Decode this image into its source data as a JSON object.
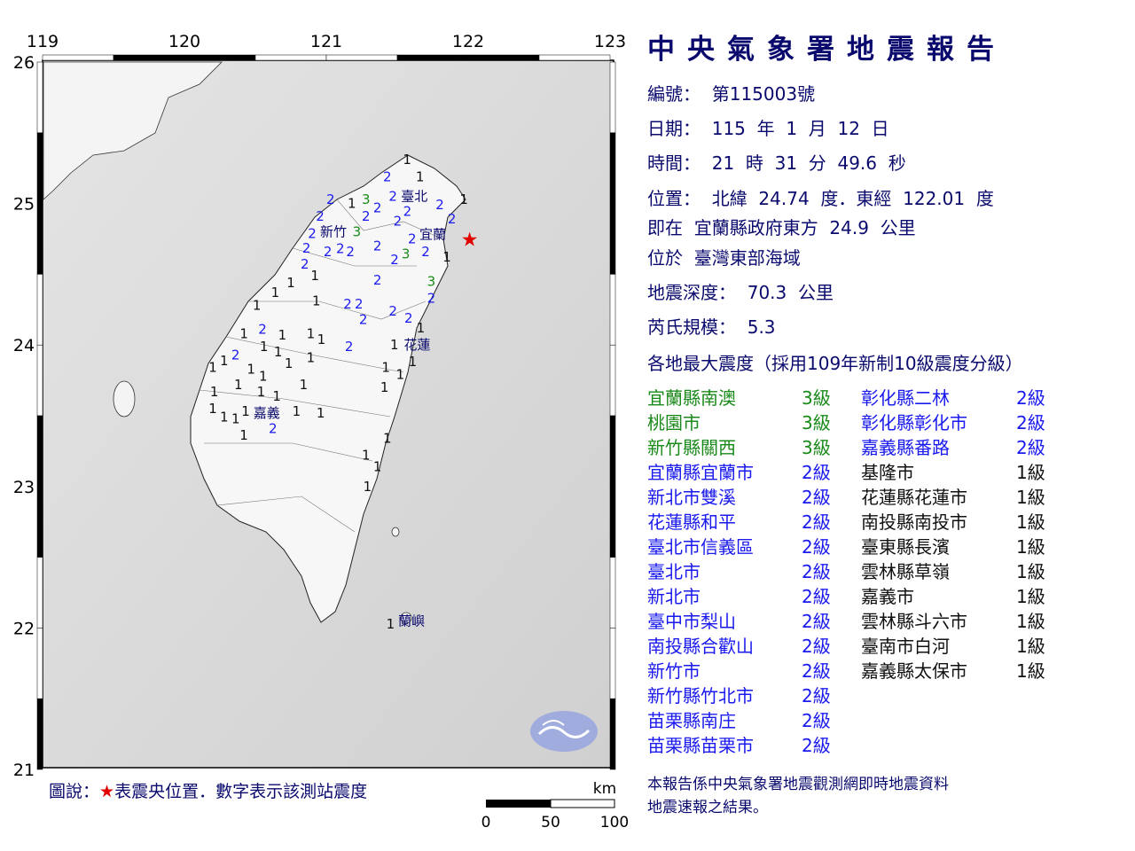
{
  "title": "中央氣象署地震報告",
  "report": {
    "number_label": "編號：",
    "number": "第115003號",
    "date_label": "日期：",
    "date": "115  年  1  月  12  日",
    "time_label": "時間：",
    "time": "21  時  31  分  49.6  秒",
    "location_label": "位置：",
    "location": "北緯  24.74  度．東經  122.01  度",
    "relative_label": "即在",
    "relative": "宜蘭縣政府東方  24.9  公里",
    "region_label": "位於",
    "region": "臺灣東部海域",
    "depth_label": "地震深度：",
    "depth": "70.3  公里",
    "magnitude_label": "芮氏規模：",
    "magnitude": "5.3",
    "intensity_heading": "各地最大震度（採用109年新制10級震度分級）"
  },
  "colors": {
    "level3": "#1a8a1a",
    "level2": "#1a1aee",
    "level1": "#111111",
    "epicenter": "#e00000",
    "text": "#0a0a6e"
  },
  "intensities_left": [
    {
      "place": "宜蘭縣南澳",
      "level": "3級",
      "n": 3
    },
    {
      "place": "桃園市",
      "level": "3級",
      "n": 3
    },
    {
      "place": "新竹縣關西",
      "level": "3級",
      "n": 3
    },
    {
      "place": "宜蘭縣宜蘭市",
      "level": "2級",
      "n": 2
    },
    {
      "place": "新北市雙溪",
      "level": "2級",
      "n": 2
    },
    {
      "place": "花蓮縣和平",
      "level": "2級",
      "n": 2
    },
    {
      "place": "臺北市信義區",
      "level": "2級",
      "n": 2
    },
    {
      "place": "臺北市",
      "level": "2級",
      "n": 2
    },
    {
      "place": "新北市",
      "level": "2級",
      "n": 2
    },
    {
      "place": "臺中市梨山",
      "level": "2級",
      "n": 2
    },
    {
      "place": "南投縣合歡山",
      "level": "2級",
      "n": 2
    },
    {
      "place": "新竹市",
      "level": "2級",
      "n": 2
    },
    {
      "place": "新竹縣竹北市",
      "level": "2級",
      "n": 2
    },
    {
      "place": "苗栗縣南庄",
      "level": "2級",
      "n": 2
    },
    {
      "place": "苗栗縣苗栗市",
      "level": "2級",
      "n": 2
    }
  ],
  "intensities_right": [
    {
      "place": "彰化縣二林",
      "level": "2級",
      "n": 2
    },
    {
      "place": "彰化縣彰化市",
      "level": "2級",
      "n": 2
    },
    {
      "place": "嘉義縣番路",
      "level": "2級",
      "n": 2
    },
    {
      "place": "基隆市",
      "level": "1級",
      "n": 1
    },
    {
      "place": "花蓮縣花蓮市",
      "level": "1級",
      "n": 1
    },
    {
      "place": "南投縣南投市",
      "level": "1級",
      "n": 1
    },
    {
      "place": "臺東縣長濱",
      "level": "1級",
      "n": 1
    },
    {
      "place": "雲林縣草嶺",
      "level": "1級",
      "n": 1
    },
    {
      "place": "嘉義市",
      "level": "1級",
      "n": 1
    },
    {
      "place": "雲林縣斗六市",
      "level": "1級",
      "n": 1
    },
    {
      "place": "臺南市白河",
      "level": "1級",
      "n": 1
    },
    {
      "place": "嘉義縣太保市",
      "level": "1級",
      "n": 1
    }
  ],
  "footer": {
    "line1": "本報告係中央氣象署地震觀測網即時地震資料",
    "line2": "地震速報之結果。"
  },
  "legend": {
    "prefix": "圖說：",
    "star": "★",
    "text": "表震央位置．數字表示該測站震度"
  },
  "map": {
    "lon_ticks": [
      "119",
      "120",
      "121",
      "122",
      "123"
    ],
    "lat_ticks": [
      "26",
      "25",
      "24",
      "23",
      "22",
      "21"
    ],
    "epicenter": {
      "lon": 122.01,
      "lat": 24.74
    },
    "scale": {
      "unit": "km",
      "labels": [
        "0",
        "50",
        "100"
      ]
    },
    "places": [
      {
        "name": "臺北",
        "lon": 121.62,
        "lat": 25.05
      },
      {
        "name": "新竹",
        "lon": 121.05,
        "lat": 24.8
      },
      {
        "name": "宜蘭",
        "lon": 121.75,
        "lat": 24.78
      },
      {
        "name": "花蓮",
        "lon": 121.64,
        "lat": 24.0
      },
      {
        "name": "嘉義",
        "lon": 120.58,
        "lat": 23.52
      },
      {
        "name": "蘭嶼",
        "lon": 121.6,
        "lat": 22.05
      }
    ],
    "stations": [
      [
        121.57,
        25.31,
        1
      ],
      [
        121.43,
        25.19,
        2
      ],
      [
        121.47,
        25.05,
        2
      ],
      [
        121.54,
        25.05,
        2
      ],
      [
        121.66,
        25.19,
        1
      ],
      [
        121.8,
        24.99,
        2
      ],
      [
        121.81,
        24.89,
        2
      ],
      [
        121.97,
        25.03,
        1
      ],
      [
        121.03,
        25.03,
        2
      ],
      [
        121.18,
        25.0,
        1
      ],
      [
        121.28,
        25.03,
        3
      ],
      [
        121.36,
        24.97,
        2
      ],
      [
        121.28,
        24.91,
        2
      ],
      [
        121.54,
        24.9,
        2
      ],
      [
        121.0,
        24.86,
        2
      ],
      [
        121.0,
        24.8,
        2
      ],
      [
        121.19,
        24.8,
        3
      ],
      [
        121.08,
        24.75,
        2
      ],
      [
        120.86,
        24.71,
        2
      ],
      [
        120.83,
        24.59,
        2
      ],
      [
        121.01,
        24.66,
        2
      ],
      [
        121.12,
        24.66,
        2
      ],
      [
        121.36,
        24.7,
        2
      ],
      [
        121.68,
        24.75,
        2
      ],
      [
        121.7,
        24.66,
        2
      ],
      [
        121.56,
        24.67,
        3
      ],
      [
        121.5,
        24.62,
        2
      ],
      [
        121.85,
        24.62,
        1
      ],
      [
        121.74,
        24.45,
        3
      ],
      [
        121.74,
        24.33,
        2
      ],
      [
        121.36,
        24.46,
        2
      ],
      [
        120.92,
        24.49,
        1
      ],
      [
        120.75,
        24.44,
        1
      ],
      [
        120.64,
        24.37,
        1
      ],
      [
        120.93,
        24.31,
        1
      ],
      [
        121.15,
        24.29,
        2
      ],
      [
        121.23,
        24.29,
        2
      ],
      [
        121.26,
        24.18,
        2
      ],
      [
        121.47,
        24.24,
        2
      ],
      [
        121.58,
        24.19,
        2
      ],
      [
        120.51,
        24.28,
        1
      ],
      [
        120.42,
        24.08,
        1
      ],
      [
        120.55,
        24.11,
        2
      ],
      [
        120.69,
        24.07,
        1
      ],
      [
        120.56,
        23.99,
        1
      ],
      [
        120.89,
        24.08,
        1
      ],
      [
        120.94,
        24.04,
        1
      ],
      [
        121.16,
        23.99,
        2
      ],
      [
        121.48,
        24.0,
        1
      ],
      [
        121.59,
        23.95,
        1
      ],
      [
        121.59,
        24.12,
        1
      ],
      [
        120.36,
        23.93,
        2
      ],
      [
        120.28,
        23.89,
        1
      ],
      [
        120.2,
        23.84,
        1
      ],
      [
        120.66,
        23.95,
        1
      ],
      [
        120.71,
        23.87,
        1
      ],
      [
        120.89,
        23.91,
        1
      ],
      [
        120.47,
        23.83,
        1
      ],
      [
        120.53,
        23.78,
        1
      ],
      [
        120.21,
        23.67,
        1
      ],
      [
        120.38,
        23.72,
        1
      ],
      [
        120.54,
        23.67,
        1
      ],
      [
        120.67,
        23.62,
        1
      ],
      [
        120.84,
        23.72,
        1
      ],
      [
        121.42,
        23.84,
        1
      ],
      [
        121.41,
        23.7,
        1
      ],
      [
        121.54,
        23.81,
        1
      ],
      [
        120.2,
        23.55,
        1
      ],
      [
        120.28,
        23.49,
        1
      ],
      [
        120.45,
        23.55,
        1
      ],
      [
        120.43,
        23.51,
        1
      ],
      [
        120.58,
        23.46,
        2
      ],
      [
        120.79,
        23.53,
        1
      ],
      [
        120.96,
        23.52,
        1
      ],
      [
        120.4,
        23.38,
        1
      ],
      [
        121.43,
        23.34,
        1
      ],
      [
        121.28,
        23.22,
        1
      ],
      [
        121.36,
        23.14,
        1
      ],
      [
        121.29,
        23.0,
        1
      ],
      [
        121.54,
        22.07,
        1
      ]
    ]
  }
}
